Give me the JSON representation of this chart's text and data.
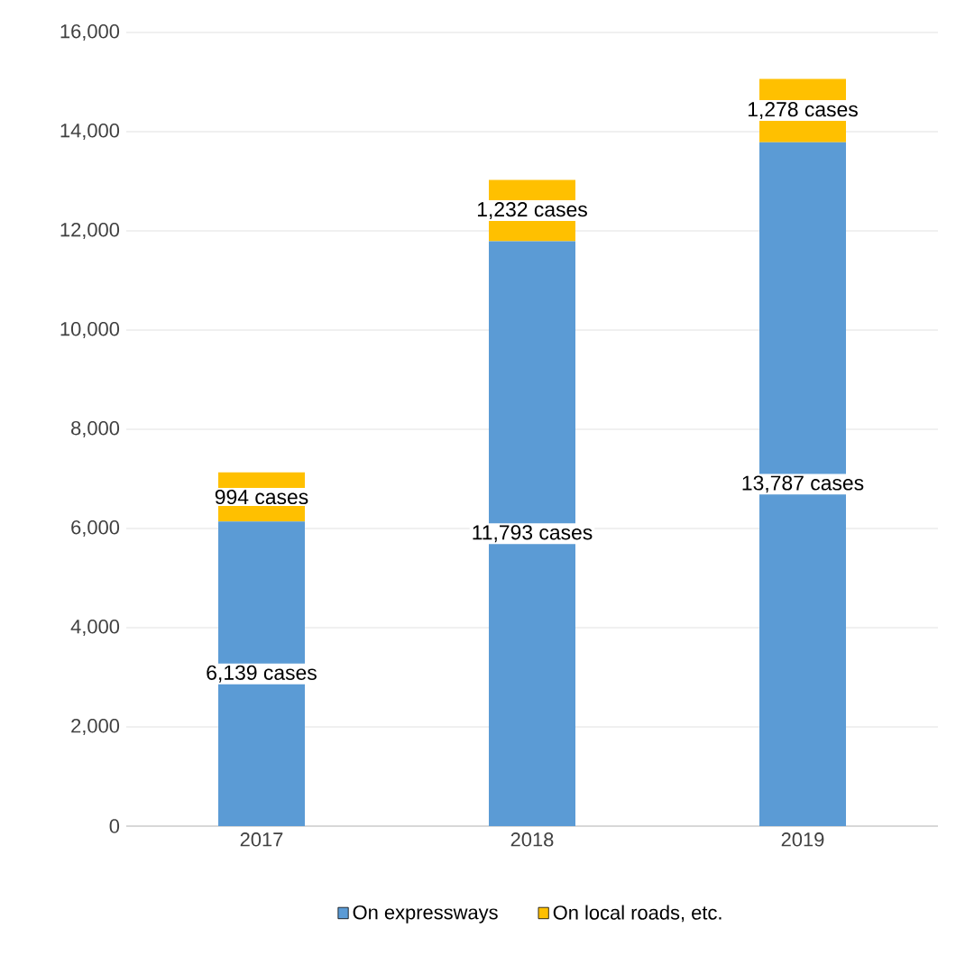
{
  "chart_data": {
    "type": "bar",
    "stacked": true,
    "categories": [
      "2017",
      "2018",
      "2019"
    ],
    "series": [
      {
        "name": "On expressways",
        "color": "#5b9bd5",
        "values": [
          6139,
          11793,
          13787
        ],
        "value_labels": [
          "6,139 cases",
          "11,793 cases",
          "13,787 cases"
        ]
      },
      {
        "name": "On local roads, etc.",
        "color": "#ffc000",
        "values": [
          994,
          1232,
          1278
        ],
        "value_labels": [
          "994 cases",
          "1,232 cases",
          "1,278 cases"
        ]
      }
    ],
    "ylim": [
      0,
      16000
    ],
    "yticks": [
      {
        "value": 0,
        "label": "0"
      },
      {
        "value": 2000,
        "label": "2,000"
      },
      {
        "value": 4000,
        "label": "4,000"
      },
      {
        "value": 6000,
        "label": "6,000"
      },
      {
        "value": 8000,
        "label": "8,000"
      },
      {
        "value": 10000,
        "label": "10,000"
      },
      {
        "value": 12000,
        "label": "12,000"
      },
      {
        "value": 14000,
        "label": "14,000"
      },
      {
        "value": 16000,
        "label": "16,000"
      }
    ],
    "grid": "y",
    "legend": "bottom"
  }
}
